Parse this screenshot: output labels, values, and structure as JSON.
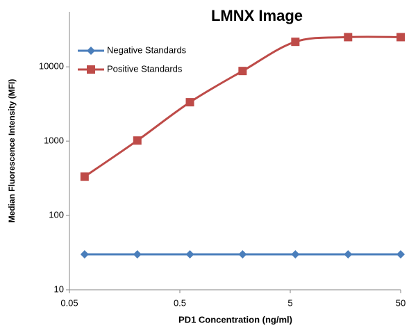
{
  "chart_data": {
    "type": "line",
    "title": "LMNX Image",
    "x_label": "PD1 Concentration (ng/ml)",
    "y_label": "Median Fluorescence Intensity (MFI)",
    "x": [
      0.0686,
      0.206,
      0.617,
      1.85,
      5.56,
      16.7,
      50
    ],
    "series": [
      {
        "name": "Negative Standards",
        "color": "#4a7ebb",
        "marker": "diamond",
        "values": [
          30,
          30,
          30,
          30,
          30,
          30,
          30
        ]
      },
      {
        "name": "Positive Standards",
        "color": "#be4b48",
        "marker": "square",
        "values": [
          333,
          1020,
          3340,
          8790,
          21700,
          25100,
          25100
        ]
      }
    ],
    "xlog": true,
    "ylog": true,
    "smooth": true,
    "grid": false,
    "xlim": [
      0.05,
      50
    ],
    "xticks": [
      0.05,
      0.5,
      5,
      50
    ],
    "ylim": [
      10,
      55000
    ],
    "yticks": [
      10,
      100,
      1000,
      10000
    ],
    "legend": "top-left"
  }
}
